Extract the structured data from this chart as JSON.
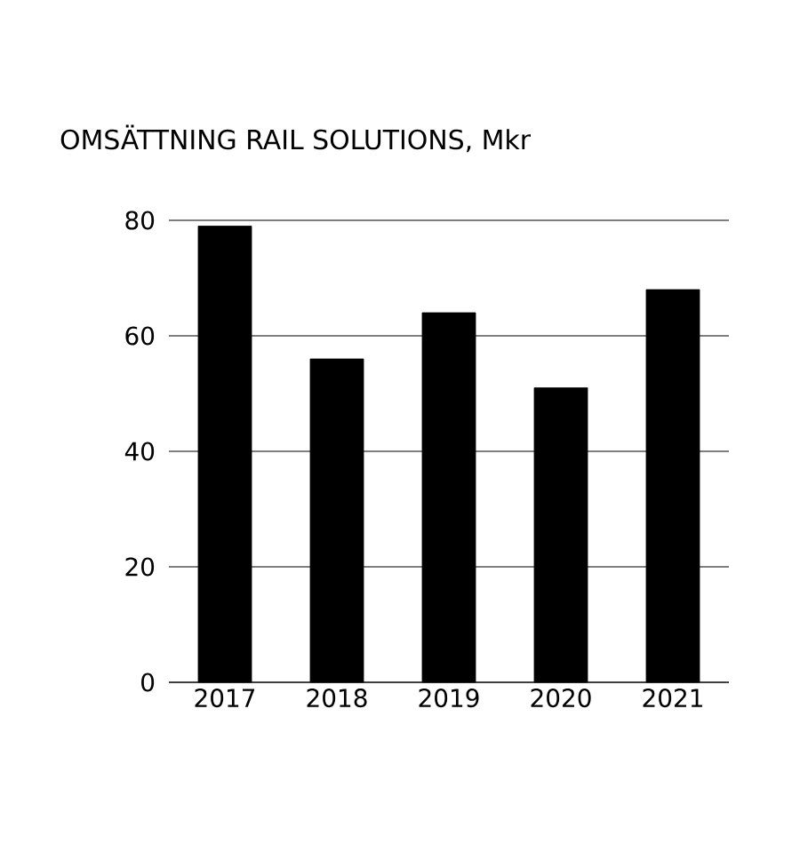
{
  "chart_data": {
    "type": "bar",
    "title": "OMSÄTTNING RAIL SOLUTIONS, Mkr",
    "categories": [
      "2017",
      "2018",
      "2019",
      "2020",
      "2021"
    ],
    "values": [
      79,
      56,
      64,
      51,
      68
    ],
    "color": "#000000",
    "ylim": [
      0,
      80
    ],
    "yticks": [
      0,
      20,
      40,
      60,
      80
    ],
    "grid": "y"
  }
}
